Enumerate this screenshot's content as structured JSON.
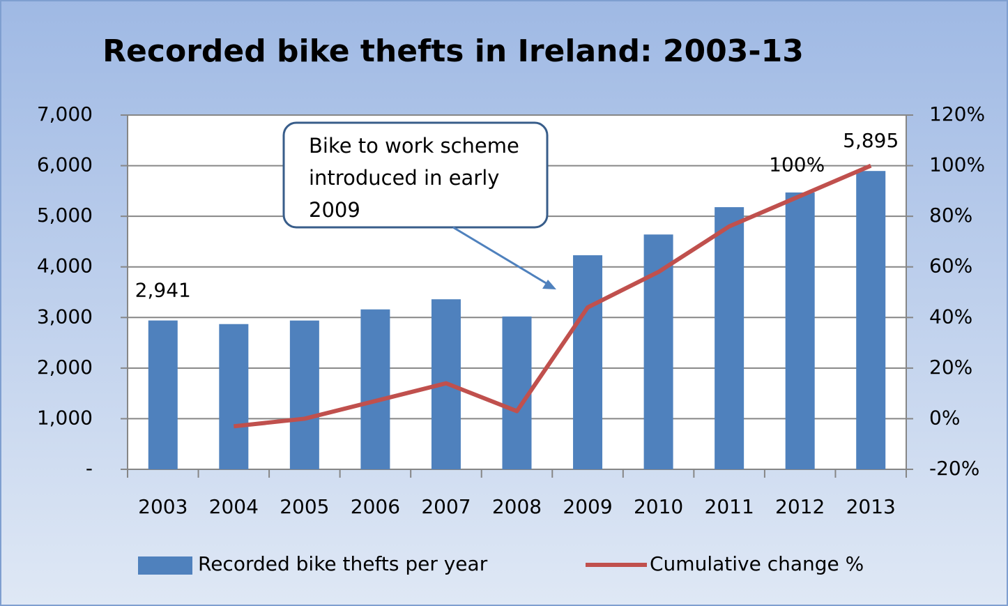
{
  "chart_data": {
    "type": "bar",
    "title": "Recorded bike thefts in Ireland: 2003-13",
    "annotation": "Bike to work scheme introduced in early 2009",
    "categories": [
      "2003",
      "2004",
      "2005",
      "2006",
      "2007",
      "2008",
      "2009",
      "2010",
      "2011",
      "2012",
      "2013"
    ],
    "series": [
      {
        "name": "Recorded bike thefts per year",
        "type": "bar",
        "color": "#4f81bd",
        "values": [
          2941,
          2870,
          2940,
          3160,
          3360,
          3020,
          4230,
          4640,
          5180,
          5470,
          5895
        ],
        "value_labels": [
          "2,941",
          null,
          null,
          null,
          null,
          null,
          null,
          null,
          null,
          null,
          "5,895"
        ]
      },
      {
        "name": "Cumulative change %",
        "type": "line",
        "axis": "y2",
        "color": "#c0504d",
        "values": [
          null,
          -3,
          0,
          7,
          14,
          3,
          44,
          58,
          76,
          88,
          100
        ],
        "value_labels": [
          null,
          null,
          null,
          null,
          null,
          null,
          null,
          null,
          null,
          null,
          "100%"
        ]
      }
    ],
    "ylim": [
      0,
      7000
    ],
    "yticks": [
      {
        "value": 0,
        "label": "-"
      },
      {
        "value": 1000,
        "label": "1,000"
      },
      {
        "value": 2000,
        "label": "2,000"
      },
      {
        "value": 3000,
        "label": "3,000"
      },
      {
        "value": 4000,
        "label": "4,000"
      },
      {
        "value": 5000,
        "label": "5,000"
      },
      {
        "value": 6000,
        "label": "6,000"
      },
      {
        "value": 7000,
        "label": "7,000"
      }
    ],
    "y2lim": [
      -20,
      120
    ],
    "y2ticks": [
      {
        "value": -20,
        "label": "-20%"
      },
      {
        "value": 0,
        "label": "0%"
      },
      {
        "value": 20,
        "label": "20%"
      },
      {
        "value": 40,
        "label": "40%"
      },
      {
        "value": 60,
        "label": "60%"
      },
      {
        "value": 80,
        "label": "80%"
      },
      {
        "value": 100,
        "label": "100%"
      },
      {
        "value": 120,
        "label": "120%"
      }
    ],
    "grid": true,
    "legend": "bottom"
  }
}
